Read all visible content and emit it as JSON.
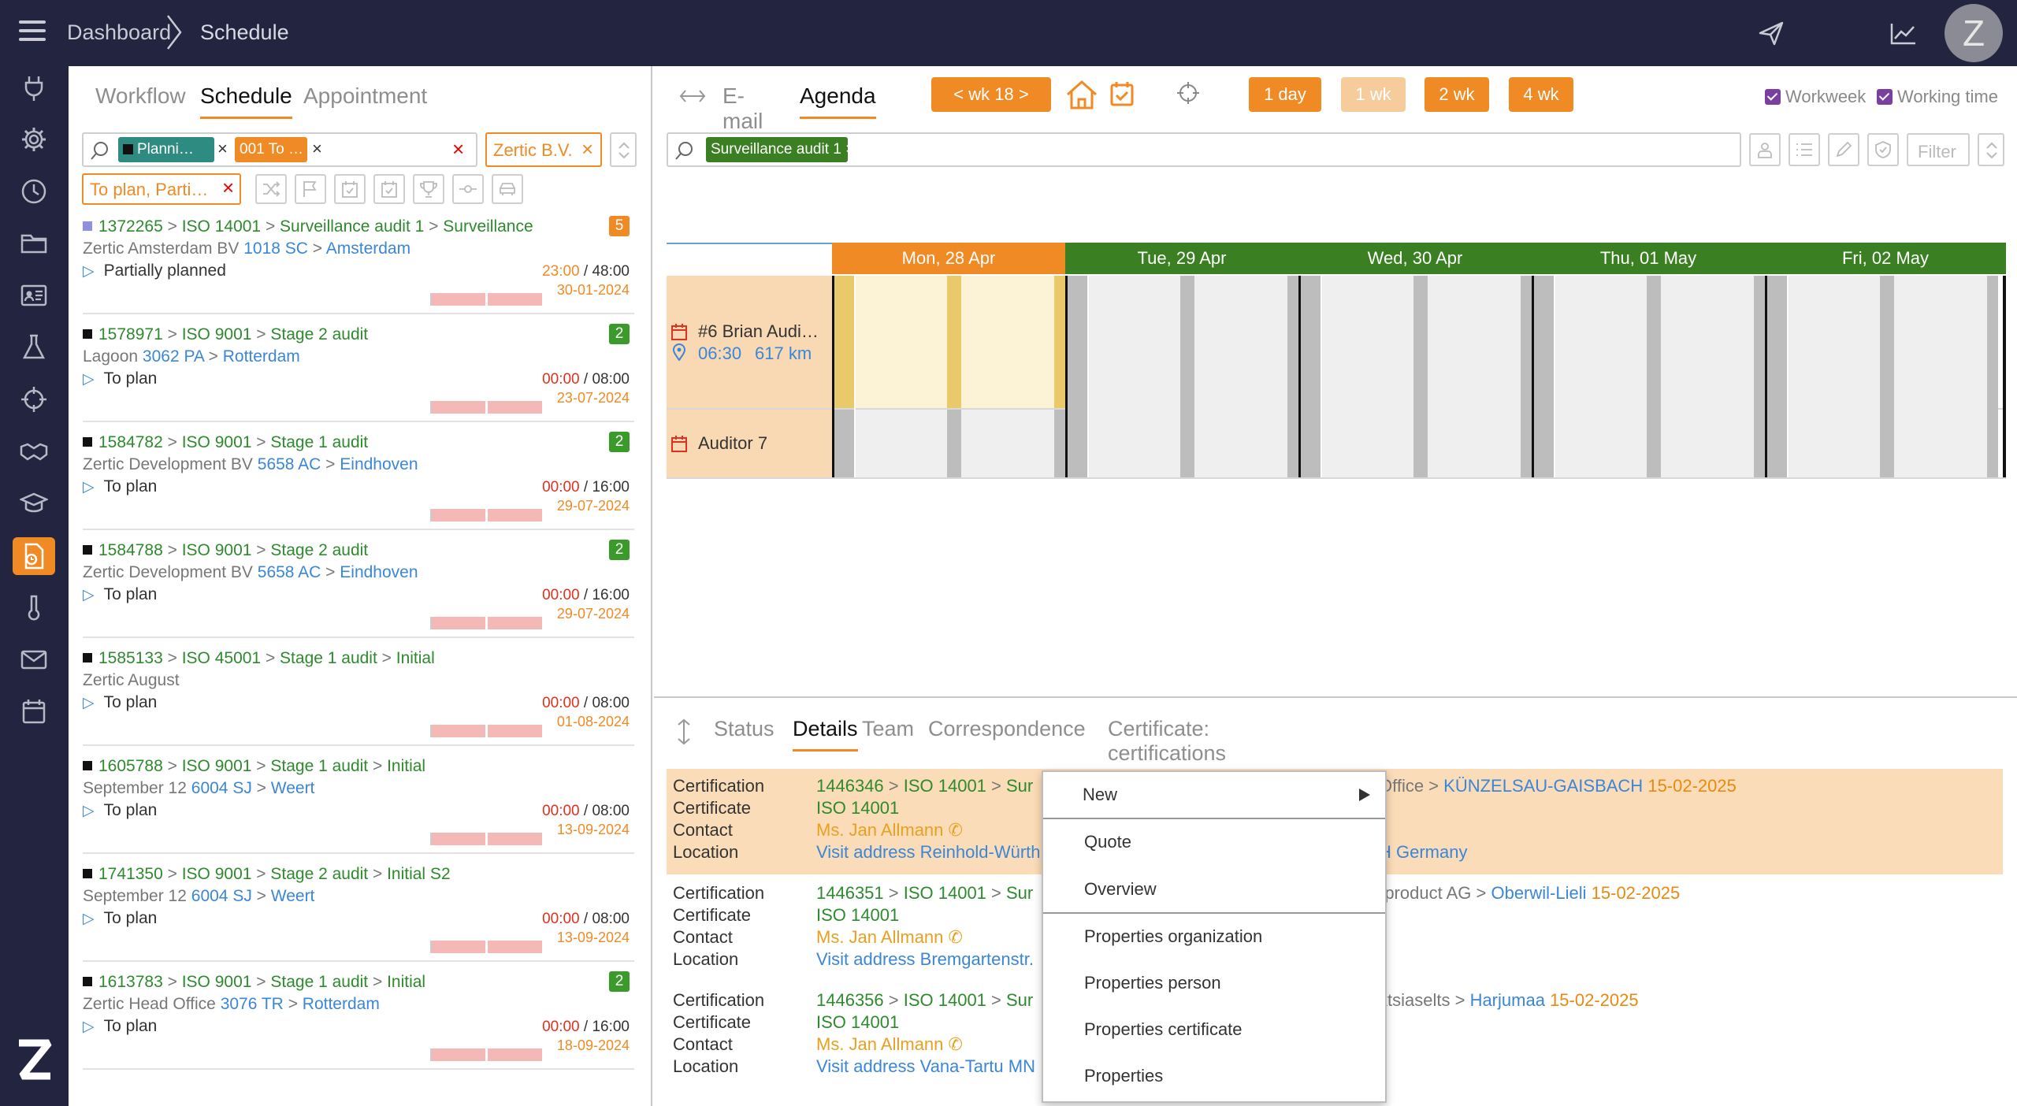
{
  "topbar": {
    "breadcrumb": [
      "Dashboard",
      "Schedule"
    ],
    "avatar": "Z",
    "icons": [
      "menu-icon",
      "send-icon",
      "chart-line-icon"
    ]
  },
  "sidebar": {
    "icons": [
      "plug-icon",
      "gear-icon",
      "clock-icon",
      "folder-icon",
      "id-card-icon",
      "flask-icon",
      "crosshair-icon",
      "handshake-icon",
      "graduation-cap-icon",
      "schedule-doc-icon",
      "thermometer-icon",
      "mail-icon",
      "calendar-icon"
    ],
    "active": "schedule-doc-icon",
    "logo": "Z"
  },
  "left": {
    "tabs": [
      "Workflow",
      "Schedule",
      "Appointment"
    ],
    "active_tab": "Schedule",
    "filters": {
      "chip1": "Planni…",
      "chip2": "001 To …",
      "company": "Zertic B.V.",
      "status": "To plan, Parti…"
    },
    "items": [
      {
        "id": "1372265",
        "path": [
          "ISO 14001",
          "Surveillance audit 1",
          "Surveillance"
        ],
        "org": "Zertic Amsterdam BV",
        "zip": "1018 SC",
        "city": "Amsterdam",
        "status": "Partially planned",
        "hrs_a": "23:00",
        "hrs_b": "48:00",
        "date": "30-01-2024",
        "badge": "5",
        "badge_color": "#f08a24",
        "sq_color": "#8f8fe6",
        "hrs_color": "o"
      },
      {
        "id": "1578971",
        "path": [
          "ISO 9001",
          "Stage 2 audit"
        ],
        "org": "Lagoon",
        "zip": "3062 PA",
        "city": "Rotterdam",
        "status": "To plan",
        "hrs_a": "00:00",
        "hrs_b": "08:00",
        "date": "23-07-2024",
        "badge": "2",
        "badge_color": "#3a9a2a",
        "sq_color": "#111",
        "hrs_color": "r"
      },
      {
        "id": "1584782",
        "path": [
          "ISO 9001",
          "Stage 1 audit"
        ],
        "org": "Zertic Development BV",
        "zip": "5658 AC",
        "city": "Eindhoven",
        "status": "To plan",
        "hrs_a": "00:00",
        "hrs_b": "16:00",
        "date": "29-07-2024",
        "badge": "2",
        "badge_color": "#3a9a2a",
        "sq_color": "#111",
        "hrs_color": "r"
      },
      {
        "id": "1584788",
        "path": [
          "ISO 9001",
          "Stage 2 audit"
        ],
        "org": "Zertic Development BV",
        "zip": "5658 AC",
        "city": "Eindhoven",
        "status": "To plan",
        "hrs_a": "00:00",
        "hrs_b": "16:00",
        "date": "29-07-2024",
        "badge": "2",
        "badge_color": "#3a9a2a",
        "sq_color": "#111",
        "hrs_color": "r"
      },
      {
        "id": "1585133",
        "path": [
          "ISO 45001",
          "Stage 1 audit",
          "Initial"
        ],
        "org": "Zertic August",
        "zip": "",
        "city": "",
        "status": "To plan",
        "hrs_a": "00:00",
        "hrs_b": "08:00",
        "date": "01-08-2024",
        "badge": "",
        "badge_color": "",
        "sq_color": "#111",
        "hrs_color": "r"
      },
      {
        "id": "1605788",
        "path": [
          "ISO 9001",
          "Stage 1 audit",
          "Initial"
        ],
        "org": "September 12",
        "zip": "6004 SJ",
        "city": "Weert",
        "status": "To plan",
        "hrs_a": "00:00",
        "hrs_b": "08:00",
        "date": "13-09-2024",
        "badge": "",
        "badge_color": "",
        "sq_color": "#111",
        "hrs_color": "r"
      },
      {
        "id": "1741350",
        "path": [
          "ISO 9001",
          "Stage 2 audit",
          "Initial S2"
        ],
        "org": "September 12",
        "zip": "6004 SJ",
        "city": "Weert",
        "status": "To plan",
        "hrs_a": "00:00",
        "hrs_b": "08:00",
        "date": "13-09-2024",
        "badge": "",
        "badge_color": "",
        "sq_color": "#111",
        "hrs_color": "r"
      },
      {
        "id": "1613783",
        "path": [
          "ISO 9001",
          "Stage 1 audit",
          "Initial"
        ],
        "org": "Zertic Head Office",
        "zip": "3076 TR",
        "city": "Rotterdam",
        "status": "To plan",
        "hrs_a": "00:00",
        "hrs_b": "16:00",
        "date": "18-09-2024",
        "badge": "2",
        "badge_color": "#3a9a2a",
        "sq_color": "#111",
        "hrs_color": "r"
      }
    ]
  },
  "right": {
    "tabs": [
      "E-mail",
      "Agenda"
    ],
    "active_tab": "Agenda",
    "week": "<  wk 18  >",
    "ranges": [
      "1 day",
      "1 wk",
      "2 wk",
      "4 wk"
    ],
    "checks": [
      "Workweek",
      "Working time"
    ],
    "search_chip": "Surveillance audit 1",
    "filter_placeholder": "Filter",
    "days": [
      {
        "label": "Mon, 28 Apr",
        "color": "#f08a24"
      },
      {
        "label": "Tue, 29 Apr",
        "color": "#3a7f22"
      },
      {
        "label": "Wed, 30 Apr",
        "color": "#3a7f22"
      },
      {
        "label": "Thu, 01 May",
        "color": "#3a7f22"
      },
      {
        "label": "Fri, 02 May",
        "color": "#3a7f22"
      }
    ],
    "rows": [
      {
        "name": "#6 Brian Audi…",
        "time": "06:30",
        "dist": "617 km"
      },
      {
        "name": "Auditor 7"
      }
    ]
  },
  "bottom": {
    "tabs": [
      "Status",
      "Details",
      "Team",
      "Correspondence",
      "Certificate: certifications"
    ],
    "active_tab": "Details",
    "labels": [
      "Certification",
      "Certificate",
      "Contact",
      "Location"
    ],
    "records": [
      {
        "cert_id": "1446346",
        "std": "ISO 14001",
        "sur": "Sur",
        "cert": "ISO 14001",
        "contact": "Ms. Jan Allmann",
        "loc": "Visit address Reinhold-Würth",
        "org_tail": "Office",
        "city": "KÜNZELSAU-GAISBACH",
        "date": "15-02-2025",
        "country_tail": "H Germany"
      },
      {
        "cert_id": "1446351",
        "std": "ISO 14001",
        "sur": "Sur",
        "cert": "ISO 14001",
        "contact": "Ms. Jan Allmann",
        "loc": "Visit address Bremgartenstr.",
        "org_tail": "rproduct AG",
        "city": "Oberwil-Lieli",
        "date": "15-02-2025",
        "country_tail": ""
      },
      {
        "cert_id": "1446356",
        "std": "ISO 14001",
        "sur": "Sur",
        "cert": "ISO 14001",
        "contact": "Ms. Jan Allmann",
        "loc": "Visit address Vana-Tartu MN",
        "org_tail": "ktsiaselts",
        "city": "Harjumaa",
        "date": "15-02-2025",
        "country_tail": ""
      }
    ]
  },
  "context_menu": {
    "items": [
      "New",
      "Quote",
      "Overview",
      "Properties organization",
      "Properties person",
      "Properties certificate",
      "Properties"
    ]
  }
}
